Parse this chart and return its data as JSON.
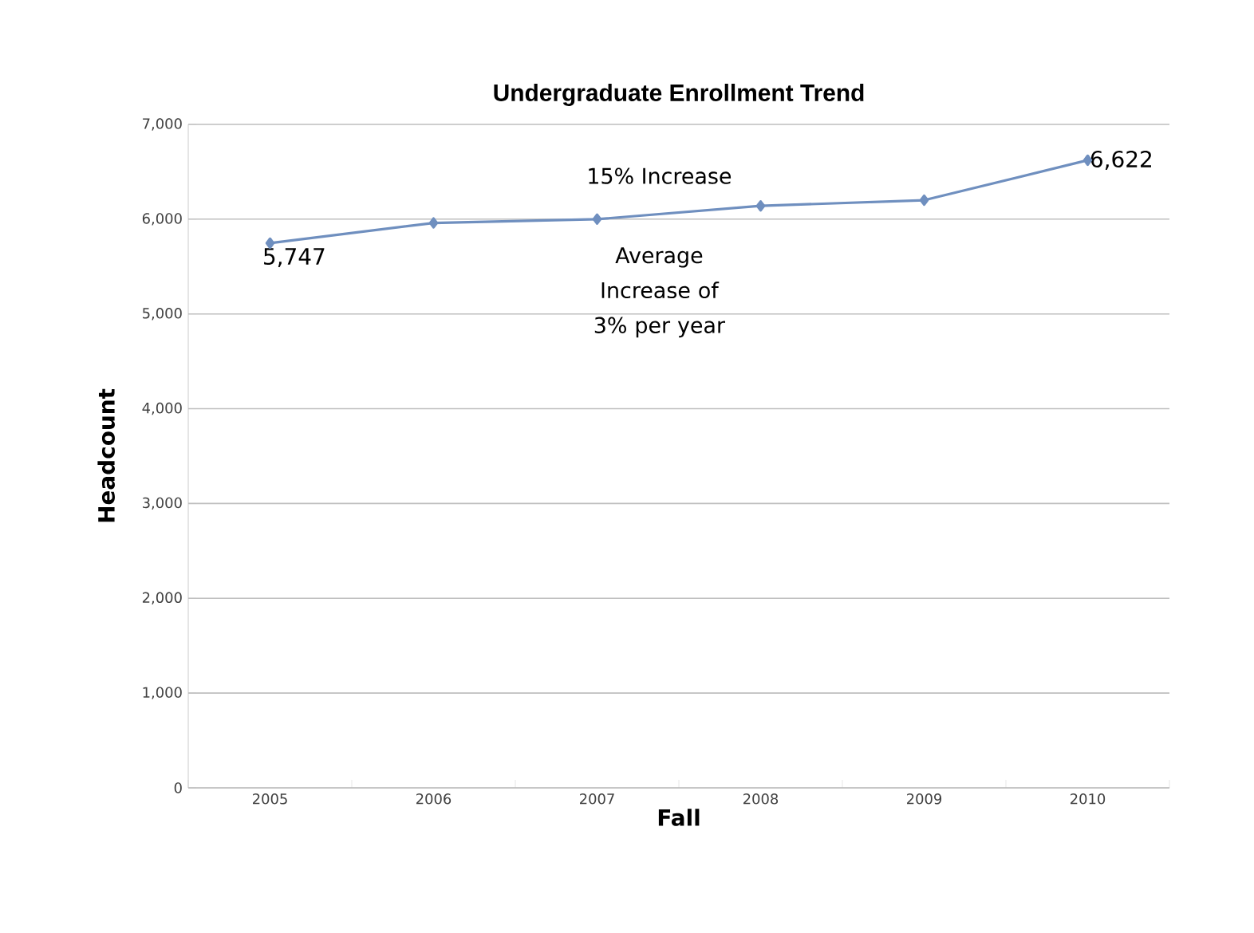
{
  "chart_data": {
    "type": "line",
    "title": "Undergraduate Enrollment Trend",
    "xlabel": "Fall",
    "ylabel": "Headcount",
    "categories": [
      "2005",
      "2006",
      "2007",
      "2008",
      "2009",
      "2010"
    ],
    "series": [
      {
        "color": "#6f8fbf",
        "values": [
          5747,
          5960,
          6000,
          6140,
          6200,
          6622
        ],
        "value_labels": [
          "5,747",
          null,
          null,
          null,
          null,
          "6,622"
        ]
      }
    ],
    "annotations": [
      "15% Increase",
      "Average Increase of 3% per year"
    ],
    "ylim": [
      0,
      7000
    ],
    "yticks": [
      {
        "value": 0,
        "label": "0"
      },
      {
        "value": 1000,
        "label": "1,000"
      },
      {
        "value": 2000,
        "label": "2,000"
      },
      {
        "value": 3000,
        "label": "3,000"
      },
      {
        "value": 4000,
        "label": "4,000"
      },
      {
        "value": 5000,
        "label": "5,000"
      },
      {
        "value": 6000,
        "label": "6,000"
      },
      {
        "value": 7000,
        "label": "7,000"
      }
    ],
    "grid": "y",
    "marker": "diamond",
    "line_style": "solid"
  }
}
